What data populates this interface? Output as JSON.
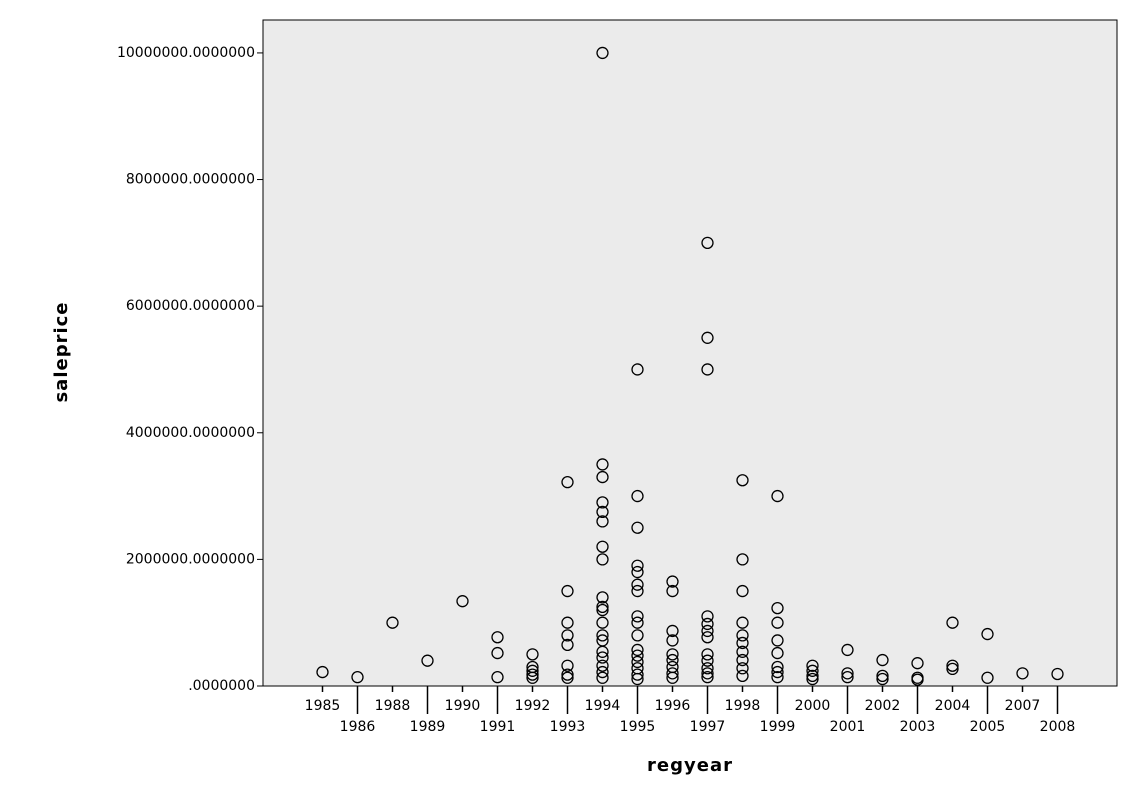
{
  "chart_data": {
    "type": "scatter",
    "x_label": "regyear",
    "y_label": "saleprice",
    "categories": [
      "1985",
      "1986",
      "1988",
      "1989",
      "1990",
      "1991",
      "1992",
      "1993",
      "1994",
      "1995",
      "1996",
      "1997",
      "1998",
      "1999",
      "2000",
      "2001",
      "2002",
      "2003",
      "2004",
      "2005",
      "2007",
      "2008"
    ],
    "x": [
      "1985",
      "1986",
      "1988",
      "1989",
      "1990",
      "1991",
      "1991",
      "1991",
      "1992",
      "1992",
      "1992",
      "1992",
      "1992",
      "1993",
      "1993",
      "1993",
      "1993",
      "1993",
      "1993",
      "1993",
      "1993",
      "1994",
      "1994",
      "1994",
      "1994",
      "1994",
      "1994",
      "1994",
      "1994",
      "1994",
      "1994",
      "1994",
      "1994",
      "1994",
      "1994",
      "1994",
      "1994",
      "1994",
      "1994",
      "1994",
      "1995",
      "1995",
      "1995",
      "1995",
      "1995",
      "1995",
      "1995",
      "1995",
      "1995",
      "1995",
      "1995",
      "1995",
      "1995",
      "1995",
      "1995",
      "1995",
      "1996",
      "1996",
      "1996",
      "1996",
      "1996",
      "1996",
      "1996",
      "1996",
      "1996",
      "1997",
      "1997",
      "1997",
      "1997",
      "1997",
      "1997",
      "1997",
      "1997",
      "1997",
      "1997",
      "1997",
      "1997",
      "1998",
      "1998",
      "1998",
      "1998",
      "1998",
      "1998",
      "1998",
      "1998",
      "1998",
      "1998",
      "1999",
      "1999",
      "1999",
      "1999",
      "1999",
      "1999",
      "1999",
      "1999",
      "2000",
      "2000",
      "2000",
      "2000",
      "2001",
      "2001",
      "2001",
      "2002",
      "2002",
      "2002",
      "2003",
      "2003",
      "2003",
      "2004",
      "2004",
      "2004",
      "2005",
      "2005",
      "2007",
      "2008"
    ],
    "values": [
      220000,
      140000,
      1000000,
      400000,
      1340000,
      770000,
      520000,
      140000,
      500000,
      300000,
      240000,
      180000,
      130000,
      3220000,
      1500000,
      1000000,
      800000,
      650000,
      320000,
      180000,
      130000,
      10000000,
      3500000,
      3300000,
      2900000,
      2750000,
      2600000,
      2200000,
      2000000,
      1400000,
      1250000,
      1200000,
      1000000,
      800000,
      720000,
      540000,
      450000,
      320000,
      220000,
      130000,
      5000000,
      3000000,
      2500000,
      1900000,
      1800000,
      1600000,
      1500000,
      1100000,
      1000000,
      800000,
      570000,
      480000,
      380000,
      280000,
      180000,
      110000,
      1650000,
      1500000,
      870000,
      720000,
      500000,
      410000,
      300000,
      200000,
      130000,
      7000000,
      5500000,
      5000000,
      1100000,
      980000,
      870000,
      770000,
      500000,
      400000,
      280000,
      200000,
      140000,
      3250000,
      2000000,
      1500000,
      1000000,
      800000,
      680000,
      540000,
      410000,
      280000,
      160000,
      3000000,
      1230000,
      1000000,
      720000,
      520000,
      300000,
      220000,
      140000,
      320000,
      240000,
      160000,
      110000,
      570000,
      200000,
      140000,
      410000,
      160000,
      110000,
      360000,
      130000,
      100000,
      1000000,
      320000,
      270000,
      820000,
      130000,
      200000,
      190000
    ],
    "color": "#000000",
    "plot_background": "#ebebeb",
    "ylim": [
      0,
      10520000
    ],
    "yticks": [
      {
        "value": 0,
        "label": ".0000000"
      },
      {
        "value": 2000000,
        "label": "2000000.0000000"
      },
      {
        "value": 4000000,
        "label": "4000000.0000000"
      },
      {
        "value": 6000000,
        "label": "6000000.0000000"
      },
      {
        "value": 8000000,
        "label": "8000000.0000000"
      },
      {
        "value": 10000000,
        "label": "10000000.0000000"
      }
    ],
    "grid": false
  }
}
